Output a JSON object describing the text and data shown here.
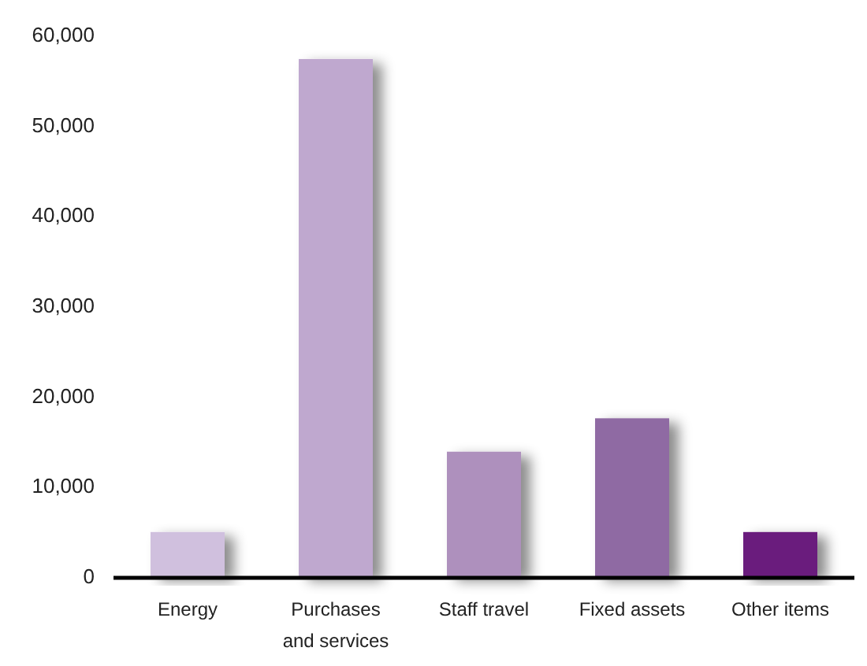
{
  "chart_data": {
    "type": "bar",
    "categories": [
      "Energy",
      "Purchases\nand services",
      "Staff travel",
      "Fixed assets",
      "Other items"
    ],
    "values": [
      4900,
      57300,
      13800,
      17500,
      4900
    ],
    "colors": [
      "#d0c0de",
      "#bfa8cf",
      "#ae90bd",
      "#8f6aa3",
      "#6b1f7d"
    ],
    "ylim": [
      0,
      60000
    ],
    "yticks": [
      {
        "value": 0,
        "label": "0"
      },
      {
        "value": 10000,
        "label": "10,000"
      },
      {
        "value": 20000,
        "label": "20,000"
      },
      {
        "value": 30000,
        "label": "30,000"
      },
      {
        "value": 40000,
        "label": "40,000"
      },
      {
        "value": 50000,
        "label": "50,000"
      },
      {
        "value": 60000,
        "label": "60,000"
      }
    ],
    "grid": false
  }
}
